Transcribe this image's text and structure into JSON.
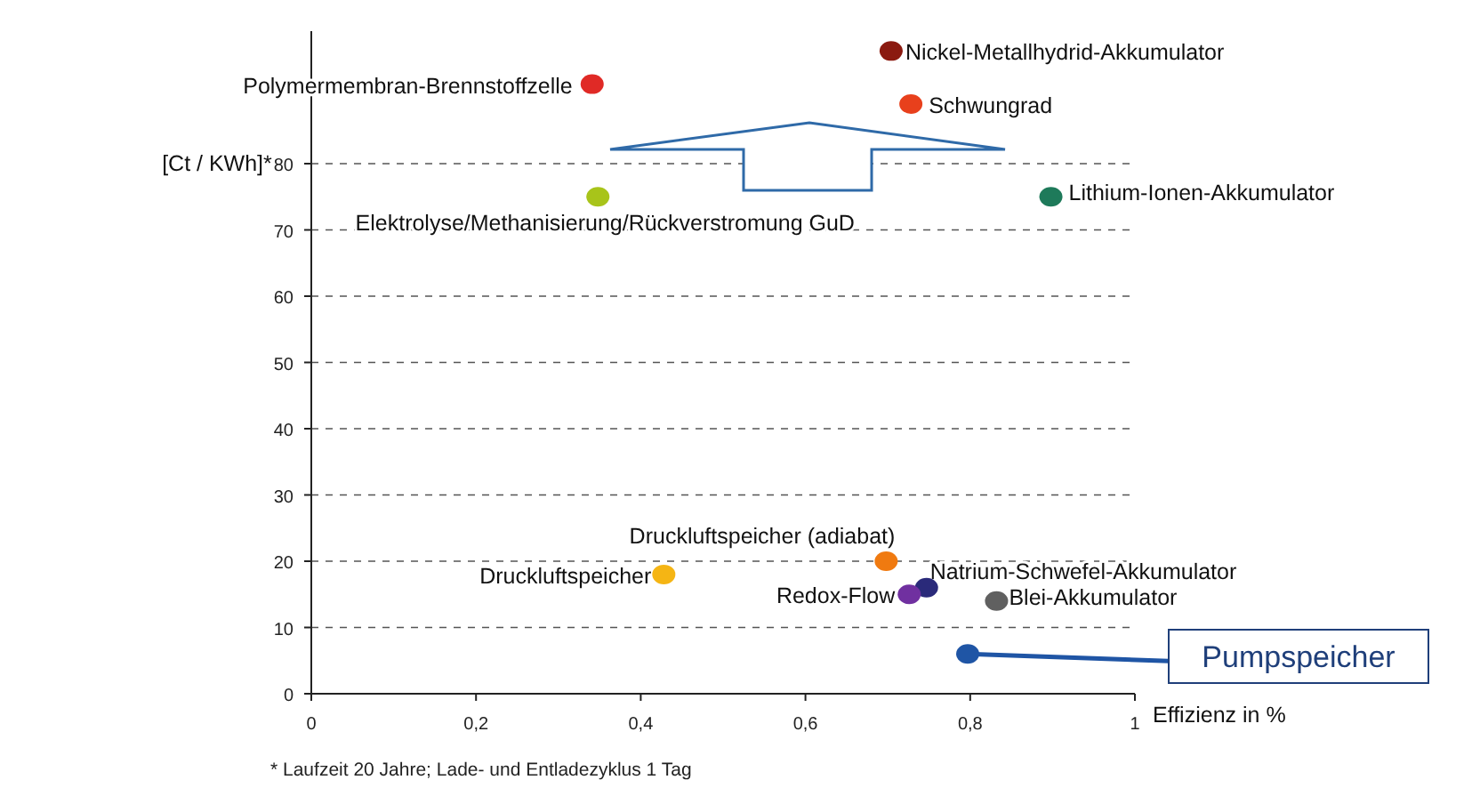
{
  "chart_data": {
    "type": "scatter",
    "xlabel": "Effizienz in %",
    "ylabel": "[Ct / KWh]*",
    "xlim": [
      0,
      1
    ],
    "xticks": [
      0,
      {
        "value": 0.2,
        "label": "0,2"
      },
      {
        "value": 0.4,
        "label": "0,4"
      },
      {
        "value": 0.6,
        "label": "0,6"
      },
      {
        "value": 0.8,
        "label": "0,8"
      },
      1
    ],
    "ylim": [
      0,
      100
    ],
    "yticks": [
      0,
      10,
      20,
      30,
      40,
      50,
      60,
      70,
      80
    ],
    "grid": "y",
    "marker": "circle",
    "series": [
      {
        "name": "Polymermembran-Brennstoffzelle",
        "color": "#e02a26",
        "x": [
          0.341
        ],
        "values": [
          92
        ]
      },
      {
        "name": "Nickel-Metallhydrid-Akkumulator",
        "color": "#8b1a10",
        "x": [
          0.704
        ],
        "values": [
          97
        ]
      },
      {
        "name": "Schwungrad",
        "color": "#e8401c",
        "x": [
          0.728
        ],
        "values": [
          89
        ]
      },
      {
        "name": "Elektrolyse/Methanisierung/Rückverstromung GuD",
        "color": "#a8c41a",
        "x": [
          0.348
        ],
        "values": [
          75
        ]
      },
      {
        "name": "Lithium-Ionen-Akkumulator",
        "color": "#1e7a5a",
        "x": [
          0.898
        ],
        "values": [
          75
        ]
      },
      {
        "name": "Druckluftspeicher (adiabat)",
        "color": "#f07a10",
        "x": [
          0.698
        ],
        "values": [
          20
        ]
      },
      {
        "name": "Druckluftspeicher",
        "color": "#f5b514",
        "x": [
          0.428
        ],
        "values": [
          18
        ]
      },
      {
        "name": "Natrium-Schwefel-Akkumulator",
        "color": "#2a2a7a",
        "x": [
          0.747
        ],
        "values": [
          16
        ]
      },
      {
        "name": "Redox-Flow",
        "color": "#7030a0",
        "x": [
          0.726
        ],
        "values": [
          15
        ]
      },
      {
        "name": "Blei-Akkumulator",
        "color": "#606060",
        "x": [
          0.832
        ],
        "values": [
          14
        ]
      },
      {
        "name": "Pumpspeicher",
        "color": "#1f55a5",
        "x": [
          0.797
        ],
        "values": [
          6
        ]
      }
    ],
    "annotations": [
      "* Laufzeit 20 Jahre; Lade- und Entladezyklus 1 Tag"
    ]
  }
}
